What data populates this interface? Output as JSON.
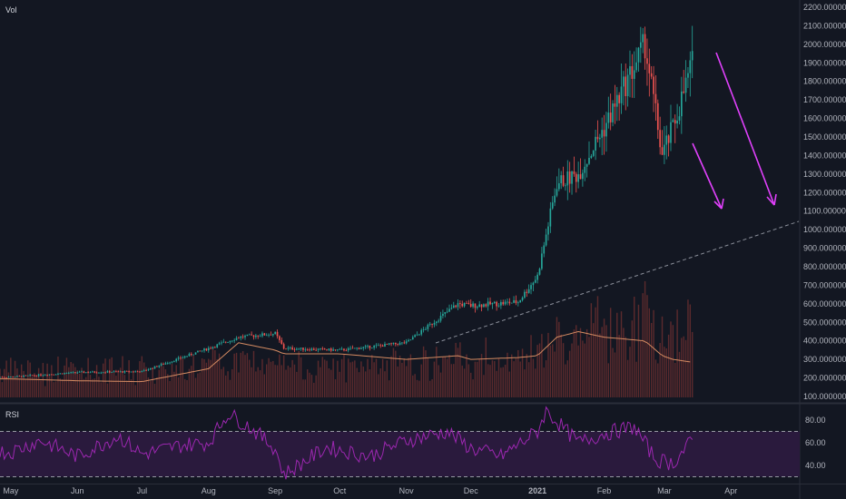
{
  "colors": {
    "background": "#131722",
    "up_candle": "#26a69a",
    "down_candle": "#ef5350",
    "volume": "#5b2a2d",
    "volume_ma": "#d48b62",
    "rsi_line": "#9c27b0",
    "rsi_band": "#2a1a3d",
    "arrow": "#e040fb",
    "trendline": "#8a8e99"
  },
  "main_pane": {
    "title": "Vol",
    "y_ticks": [
      "2200.000000",
      "2100.000000",
      "2000.000000",
      "1900.000000",
      "1800.000000",
      "1700.000000",
      "1600.000000",
      "1500.000000",
      "1400.000000",
      "1300.000000",
      "1200.000000",
      "1100.000000",
      "1000.000000",
      "900.000000",
      "800.000000",
      "700.000000",
      "600.000000",
      "500.000000",
      "400.000000",
      "300.000000",
      "200.000000",
      "100.000000"
    ]
  },
  "rsi_pane": {
    "title": "RSI",
    "y_ticks": [
      "80.00",
      "60.00",
      "40.00"
    ],
    "upper_band": 70,
    "lower_band": 30
  },
  "x_ticks": [
    "May",
    "Jun",
    "Jul",
    "Aug",
    "Sep",
    "Oct",
    "Nov",
    "Dec",
    "2021",
    "Feb",
    "Mar",
    "Apr"
  ],
  "chart_data": {
    "type": "line",
    "title": "",
    "x": [
      "2020-05-01",
      "2020-06-01",
      "2020-07-01",
      "2020-08-01",
      "2020-08-15",
      "2020-09-01",
      "2020-09-05",
      "2020-10-01",
      "2020-11-01",
      "2020-11-25",
      "2020-12-01",
      "2020-12-23",
      "2021-01-01",
      "2021-01-10",
      "2021-01-20",
      "2021-02-01",
      "2021-02-20",
      "2021-02-28",
      "2021-03-05",
      "2021-03-14"
    ],
    "ylim": [
      80,
      2250
    ],
    "log_scale": false,
    "series": [
      {
        "values": [
          205,
          230,
          235,
          360,
          420,
          440,
          360,
          350,
          390,
          600,
          590,
          610,
          750,
          1250,
          1300,
          1550,
          2000,
          1400,
          1550,
          1900
        ]
      }
    ],
    "volume_ma": {
      "values": [
        195,
        185,
        180,
        250,
        390,
        350,
        330,
        330,
        300,
        320,
        300,
        310,
        320,
        420,
        450,
        420,
        400,
        320,
        300,
        285
      ]
    },
    "rsi": {
      "x": [
        "2020-05-01",
        "2020-05-15",
        "2020-06-01",
        "2020-06-20",
        "2020-07-01",
        "2020-07-20",
        "2020-08-01",
        "2020-08-10",
        "2020-08-20",
        "2020-09-01",
        "2020-09-05",
        "2020-09-25",
        "2020-10-15",
        "2020-11-01",
        "2020-11-20",
        "2020-12-01",
        "2020-12-15",
        "2021-01-01",
        "2021-01-05",
        "2021-01-20",
        "2021-02-01",
        "2021-02-15",
        "2021-02-25",
        "2021-03-05",
        "2021-03-14"
      ],
      "values": [
        52,
        62,
        48,
        66,
        50,
        58,
        60,
        86,
        74,
        55,
        32,
        56,
        48,
        62,
        70,
        55,
        48,
        70,
        88,
        60,
        68,
        74,
        45,
        42,
        62
      ]
    }
  }
}
